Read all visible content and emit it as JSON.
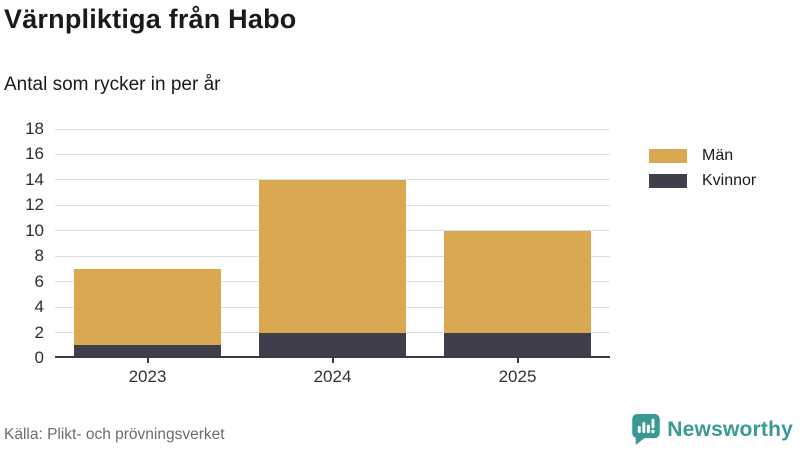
{
  "header": {
    "title": "Värnpliktiga från Habo",
    "subtitle": "Antal som rycker in per år"
  },
  "chart_data": {
    "type": "bar",
    "stacked": true,
    "title": "Värnpliktiga från Habo",
    "subtitle": "Antal som rycker in per år",
    "categories": [
      "2023",
      "2024",
      "2025"
    ],
    "series": [
      {
        "name": "Kvinnor",
        "color": "#3e3e4c",
        "values": [
          1,
          2,
          2
        ]
      },
      {
        "name": "Män",
        "color": "#d9a851",
        "values": [
          6,
          12,
          8
        ]
      }
    ],
    "totals": [
      7,
      14,
      10
    ],
    "legend": [
      {
        "label": "Män",
        "color": "#d9a851"
      },
      {
        "label": "Kvinnor",
        "color": "#3e3e4c"
      }
    ],
    "legend_position": "right",
    "xlabel": "",
    "ylabel": "",
    "ylim": [
      0,
      18
    ],
    "ytick_step": 2,
    "grid": true,
    "gridline_color": "#dddddd",
    "axis_color": "#3a3a46"
  },
  "footer": {
    "source": "Källa: Plikt- och prövningsverket",
    "brand": "Newsworthy",
    "brand_color": "#3a9a93"
  }
}
